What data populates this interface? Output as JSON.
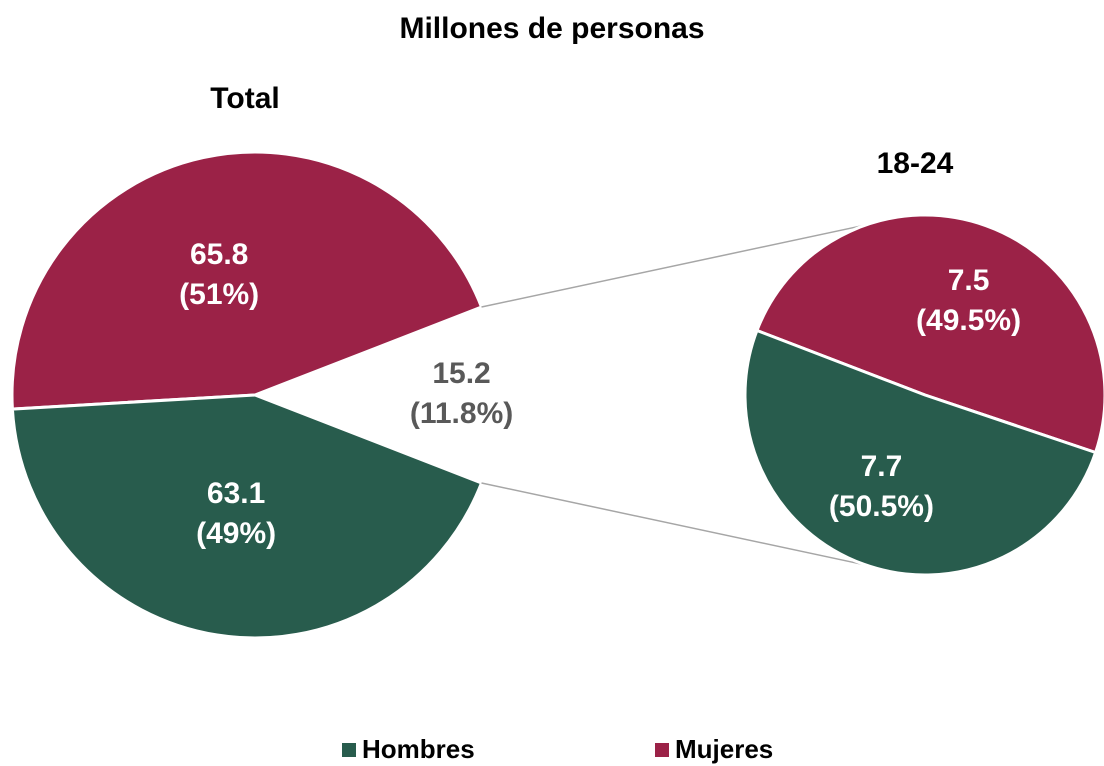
{
  "chart_data": {
    "type": "pie-of-pie",
    "title": "Millones de personas",
    "pie_titles": [
      "Total",
      "18-24"
    ],
    "series": [
      {
        "name": "Hombres",
        "color": "#285c4d",
        "values": [
          63.1,
          7.7
        ],
        "percent_labels": [
          "(49%)",
          "(50.5%)"
        ]
      },
      {
        "name": "Mujeres",
        "color": "#9b2247",
        "values": [
          65.8,
          7.5
        ],
        "percent_labels": [
          "(51%)",
          "(49.5%)"
        ]
      }
    ],
    "split": {
      "value": 15.2,
      "percent_label": "(11.8%)"
    },
    "legend": "bottom"
  }
}
